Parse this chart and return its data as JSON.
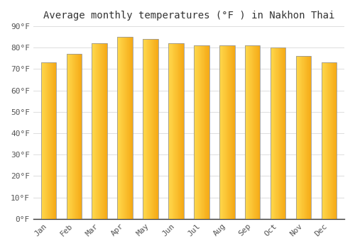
{
  "title": "Average monthly temperatures (°F ) in Nakhon Thai",
  "months": [
    "Jan",
    "Feb",
    "Mar",
    "Apr",
    "May",
    "Jun",
    "Jul",
    "Aug",
    "Sep",
    "Oct",
    "Nov",
    "Dec"
  ],
  "values": [
    73,
    77,
    82,
    85,
    84,
    82,
    81,
    81,
    81,
    80,
    76,
    73
  ],
  "ylim": [
    0,
    90
  ],
  "yticks": [
    0,
    10,
    20,
    30,
    40,
    50,
    60,
    70,
    80,
    90
  ],
  "ytick_labels": [
    "0°F",
    "10°F",
    "20°F",
    "30°F",
    "40°F",
    "50°F",
    "60°F",
    "70°F",
    "80°F",
    "90°F"
  ],
  "background_color": "#FFFFFF",
  "grid_color": "#DDDDDD",
  "title_fontsize": 10,
  "tick_fontsize": 8,
  "bar_color_left": "#FFD44A",
  "bar_color_right": "#F5A800",
  "bar_edge_color": "#999999",
  "bar_width": 0.6
}
